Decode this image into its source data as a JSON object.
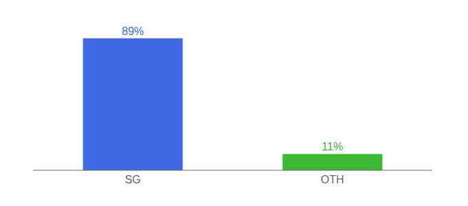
{
  "chart_data": {
    "type": "bar",
    "categories": [
      "SG",
      "OTH"
    ],
    "values": [
      89,
      11
    ],
    "colors": [
      "#4169e1",
      "#3cb832"
    ],
    "value_labels": [
      "89%",
      "11%"
    ],
    "data_labels": true,
    "ylim": [
      0,
      100
    ],
    "tick_labels": "x"
  }
}
